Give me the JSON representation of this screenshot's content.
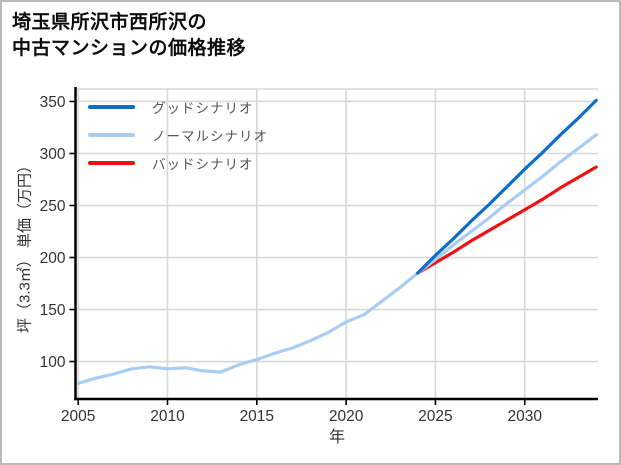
{
  "header": {
    "title_lines": [
      "埼玉県所沢市西所沢の",
      "中古マンションの価格推移"
    ]
  },
  "legend": {
    "items": [
      {
        "label": "グッドシナリオ",
        "color": "#0d6ec7",
        "series": "good-scenario"
      },
      {
        "label": "ノーマルシナリオ",
        "color": "#a8cdf3",
        "series": "normal-scenario"
      },
      {
        "label": "バッドシナリオ",
        "color": "#ee1111",
        "series": "bad-scenario"
      }
    ]
  },
  "chart_data": {
    "type": "line",
    "title": "埼玉県所沢市西所沢の中古マンションの価格推移",
    "xlabel": "年",
    "ylabel": "坪（3.3㎡） 単価（万円）",
    "x_ticks": [
      2005,
      2010,
      2015,
      2020,
      2025,
      2030
    ],
    "y_ticks": [
      100,
      150,
      200,
      250,
      300,
      350
    ],
    "xlim": [
      2004.85,
      2034.1
    ],
    "ylim": [
      64,
      362
    ],
    "grid": true,
    "legend_position": "top-left",
    "colors": {
      "axis": "#000000",
      "gridline": "#d8d8d8",
      "tick_label": "#333333",
      "legend_text": "#555555"
    },
    "series": [
      {
        "name": "history",
        "legend": null,
        "color": "#a8cdf3",
        "x": [
          2005,
          2006,
          2007,
          2008,
          2009,
          2010,
          2011,
          2012,
          2013,
          2014,
          2015,
          2016,
          2017,
          2018,
          2019,
          2020,
          2021,
          2022,
          2023,
          2024
        ],
        "values": [
          79,
          84,
          88,
          93,
          95,
          93,
          94,
          91,
          90,
          97,
          102,
          108,
          113,
          120,
          128,
          138,
          145,
          158,
          171,
          185
        ]
      },
      {
        "name": "good-scenario",
        "legend": "グッドシナリオ",
        "color": "#0d6ec7",
        "x": [
          2024,
          2025,
          2026,
          2027,
          2028,
          2029,
          2030,
          2031,
          2032,
          2033,
          2034
        ],
        "values": [
          185,
          202,
          218,
          235,
          251,
          268,
          285,
          301,
          318,
          334,
          351
        ]
      },
      {
        "name": "normal-scenario",
        "legend": "ノーマルシナリオ",
        "color": "#a8cdf3",
        "x": [
          2024,
          2025,
          2026,
          2027,
          2028,
          2029,
          2030,
          2031,
          2032,
          2033,
          2034
        ],
        "values": [
          185,
          198,
          212,
          225,
          238,
          252,
          265,
          278,
          292,
          305,
          318
        ]
      },
      {
        "name": "bad-scenario",
        "legend": "バッドシナリオ",
        "color": "#ee1111",
        "x": [
          2024,
          2025,
          2026,
          2027,
          2028,
          2029,
          2030,
          2031,
          2032,
          2033,
          2034
        ],
        "values": [
          185,
          195,
          205,
          216,
          226,
          236,
          246,
          256,
          267,
          277,
          287
        ]
      }
    ]
  }
}
